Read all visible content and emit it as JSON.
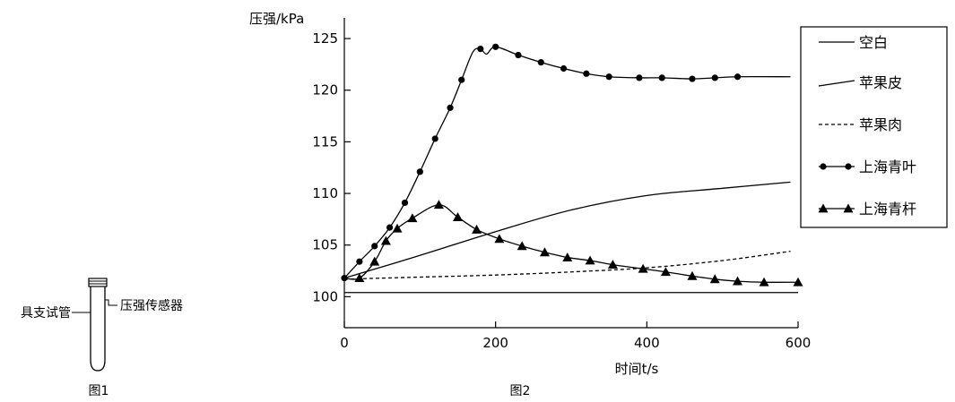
{
  "figure1": {
    "caption": "图1",
    "tube_label": "具支试管",
    "sensor_label": "压强传感器"
  },
  "figure2_caption": "图2",
  "chart_data": {
    "type": "line",
    "ylabel": "压强/kPa",
    "xlabel": "时间t/s",
    "xlim": [
      0,
      600
    ],
    "ylim": [
      97,
      127
    ],
    "x_ticks": [
      "0",
      "200",
      "400",
      "600"
    ],
    "y_ticks": [
      "100",
      "105",
      "110",
      "115",
      "120",
      "125"
    ],
    "grid": false,
    "legend_position": "top-right",
    "series": [
      {
        "name": "空白",
        "line_style": "solid",
        "marker": "none",
        "points": [
          [
            0,
            100.4
          ],
          [
            600,
            100.4
          ]
        ]
      },
      {
        "name": "苹果皮",
        "line_style": "solid",
        "marker": "none",
        "points": [
          [
            0,
            101.8
          ],
          [
            100,
            104
          ],
          [
            200,
            106.3
          ],
          [
            300,
            108.4
          ],
          [
            400,
            109.8
          ],
          [
            500,
            110.5
          ],
          [
            590,
            111.1
          ]
        ]
      },
      {
        "name": "苹果肉",
        "line_style": "dashed",
        "marker": "none",
        "points": [
          [
            0,
            101.7
          ],
          [
            100,
            101.9
          ],
          [
            200,
            102.1
          ],
          [
            300,
            102.4
          ],
          [
            400,
            102.8
          ],
          [
            500,
            103.5
          ],
          [
            590,
            104.4
          ]
        ]
      },
      {
        "name": "上海青叶",
        "line_style": "solid",
        "marker": "circle",
        "points": [
          [
            0,
            101.8
          ],
          [
            20,
            103.4
          ],
          [
            40,
            104.9
          ],
          [
            60,
            106.7
          ],
          [
            80,
            109.1
          ],
          [
            100,
            112.1
          ],
          [
            120,
            115.3
          ],
          [
            140,
            118.3
          ],
          [
            155,
            121
          ],
          [
            170,
            123.7
          ],
          [
            180,
            124
          ],
          [
            188,
            123.5
          ],
          [
            200,
            124.2
          ],
          [
            230,
            123.4
          ],
          [
            260,
            122.7
          ],
          [
            290,
            122.1
          ],
          [
            320,
            121.6
          ],
          [
            350,
            121.3
          ],
          [
            390,
            121.2
          ],
          [
            420,
            121.2
          ],
          [
            460,
            121.1
          ],
          [
            490,
            121.2
          ],
          [
            520,
            121.3
          ],
          [
            590,
            121.3
          ]
        ],
        "marker_points": [
          [
            0,
            101.8
          ],
          [
            20,
            103.4
          ],
          [
            40,
            104.9
          ],
          [
            60,
            106.7
          ],
          [
            80,
            109.1
          ],
          [
            100,
            112.1
          ],
          [
            120,
            115.3
          ],
          [
            140,
            118.3
          ],
          [
            155,
            121
          ],
          [
            180,
            124
          ],
          [
            200,
            124.2
          ],
          [
            230,
            123.4
          ],
          [
            260,
            122.7
          ],
          [
            290,
            122.1
          ],
          [
            320,
            121.6
          ],
          [
            350,
            121.3
          ],
          [
            390,
            121.2
          ],
          [
            420,
            121.2
          ],
          [
            460,
            121.1
          ],
          [
            490,
            121.2
          ],
          [
            520,
            121.3
          ]
        ]
      },
      {
        "name": "上海青杆",
        "line_style": "solid",
        "marker": "triangle",
        "points": [
          [
            0,
            101.8
          ],
          [
            20,
            101.8
          ],
          [
            40,
            103.4
          ],
          [
            55,
            105.4
          ],
          [
            70,
            106.6
          ],
          [
            90,
            107.6
          ],
          [
            125,
            108.9
          ],
          [
            150,
            107.7
          ],
          [
            175,
            106.5
          ],
          [
            205,
            105.6
          ],
          [
            235,
            104.9
          ],
          [
            265,
            104.3
          ],
          [
            295,
            103.8
          ],
          [
            325,
            103.5
          ],
          [
            355,
            103.1
          ],
          [
            395,
            102.7
          ],
          [
            425,
            102.4
          ],
          [
            460,
            102
          ],
          [
            490,
            101.7
          ],
          [
            520,
            101.5
          ],
          [
            555,
            101.4
          ],
          [
            600,
            101.4
          ]
        ],
        "marker_points": [
          [
            20,
            101.8
          ],
          [
            40,
            103.4
          ],
          [
            55,
            105.4
          ],
          [
            70,
            106.6
          ],
          [
            90,
            107.6
          ],
          [
            125,
            108.9
          ],
          [
            150,
            107.7
          ],
          [
            175,
            106.5
          ],
          [
            205,
            105.6
          ],
          [
            235,
            104.9
          ],
          [
            265,
            104.3
          ],
          [
            295,
            103.8
          ],
          [
            325,
            103.5
          ],
          [
            355,
            103.1
          ],
          [
            395,
            102.7
          ],
          [
            425,
            102.4
          ],
          [
            460,
            102
          ],
          [
            490,
            101.7
          ],
          [
            520,
            101.5
          ],
          [
            555,
            101.4
          ],
          [
            600,
            101.4
          ]
        ]
      }
    ]
  }
}
